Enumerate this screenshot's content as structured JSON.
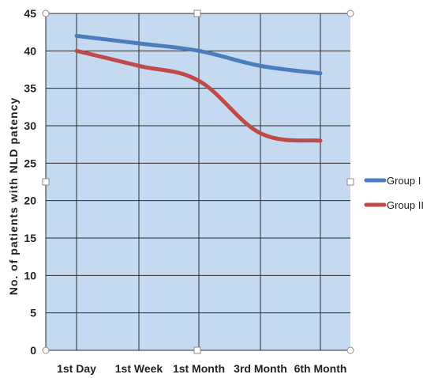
{
  "chart_data": {
    "type": "line",
    "categories": [
      "1st Day",
      "1st Week",
      "1st Month",
      "3rd Month",
      "6th Month"
    ],
    "series": [
      {
        "name": "Group I",
        "values": [
          42,
          41,
          40,
          38,
          37
        ],
        "color": "#4a7ebb"
      },
      {
        "name": "Group II",
        "values": [
          40,
          38,
          36,
          29,
          28
        ],
        "color": "#be4b48"
      }
    ],
    "xlabel": "",
    "ylabel": "No. of patients with NLD patency",
    "ylim": [
      0,
      45
    ],
    "yticks": [
      0,
      5,
      10,
      15,
      20,
      25,
      30,
      35,
      40,
      45
    ],
    "grid": true,
    "legend": "right",
    "plot_background": "#c5d9f1"
  }
}
